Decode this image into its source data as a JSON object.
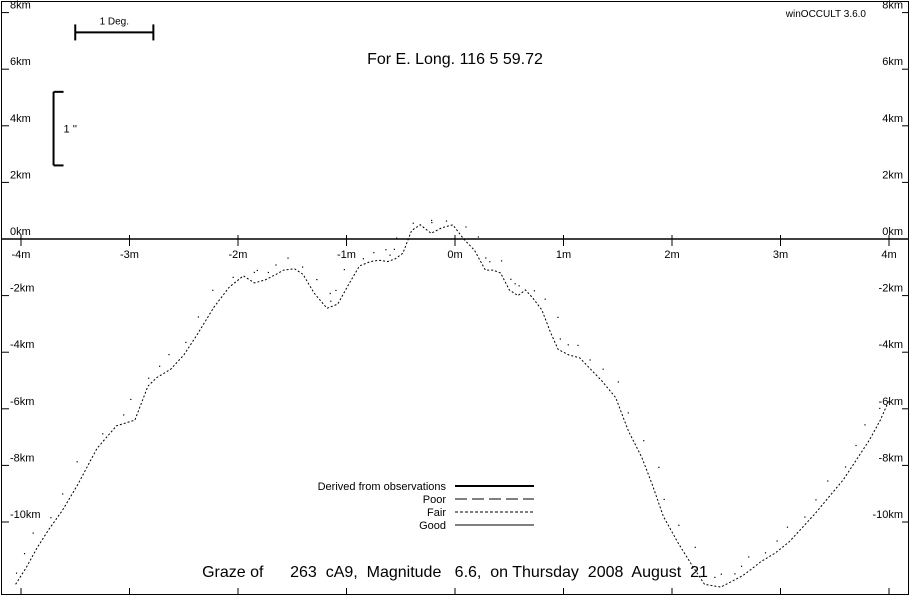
{
  "app_name": "winOCCULT 3.6.0",
  "chart_data": {
    "type": "line",
    "title": "Graze of      263  cA9,  Magnitude   6.6,  on Thursday  2008  August  21",
    "subtitle": "For E. Long.  116  5 59.72",
    "xlabel": "",
    "ylabel": "",
    "x_unit": "m",
    "y_unit": "km",
    "xlim": [
      -4.0,
      4.0
    ],
    "ylim": [
      -12.2,
      8.3
    ],
    "grid": false,
    "x_ticks": [
      {
        "value": -4,
        "label": "-4m"
      },
      {
        "value": -3,
        "label": "-3m"
      },
      {
        "value": -2,
        "label": "-2m"
      },
      {
        "value": -1,
        "label": "-1m"
      },
      {
        "value": 0,
        "label": "0m"
      },
      {
        "value": 1,
        "label": "1m"
      },
      {
        "value": 2,
        "label": "2m"
      },
      {
        "value": 3,
        "label": "3m"
      },
      {
        "value": 4,
        "label": "4m"
      }
    ],
    "y_ticks": [
      {
        "value": 8,
        "label": "8km"
      },
      {
        "value": 6,
        "label": "6km"
      },
      {
        "value": 4,
        "label": "4km"
      },
      {
        "value": 2,
        "label": "2km"
      },
      {
        "value": 0,
        "label": "0km"
      },
      {
        "value": -2,
        "label": "-2km"
      },
      {
        "value": -4,
        "label": "-4km"
      },
      {
        "value": -6,
        "label": "-6km"
      },
      {
        "value": -8,
        "label": "-8km"
      },
      {
        "value": -10,
        "label": "-10km"
      }
    ],
    "scale_bars": [
      {
        "label": "1 Deg.",
        "orientation": "horizontal",
        "x_range": [
          -3.5,
          -2.78
        ],
        "y": 7.3
      },
      {
        "label": "1 ''",
        "orientation": "vertical",
        "x": -3.7,
        "y_range": [
          2.6,
          5.2
        ]
      }
    ],
    "legend": {
      "placement": "bottom-center",
      "entries": [
        {
          "label": "Derived from observations",
          "style": "thick-solid"
        },
        {
          "label": "Poor",
          "style": "long-dash"
        },
        {
          "label": "Fair",
          "style": "short-dash"
        },
        {
          "label": "Good",
          "style": "thin-solid"
        }
      ]
    },
    "series": [
      {
        "style": "short-dash",
        "x": [
          -4.05,
          -3.95,
          -3.85,
          -3.75,
          -3.62,
          -3.48,
          -3.3,
          -3.12,
          -2.95,
          -2.83,
          -2.75,
          -2.62,
          -2.5,
          -2.38,
          -2.22,
          -2.08,
          -1.95,
          -1.85,
          -1.75,
          -1.65,
          -1.58,
          -1.48,
          -1.4,
          -1.3,
          -1.18,
          -1.08,
          -0.98,
          -0.88,
          -0.78,
          -0.7,
          -0.62,
          -0.55,
          -0.48,
          -0.4,
          -0.32,
          -0.22,
          -0.12,
          -0.02,
          0.08,
          0.18,
          0.28,
          0.35,
          0.42,
          0.5,
          0.58,
          0.65,
          0.72,
          0.8,
          0.88,
          0.95,
          1.05,
          1.15,
          1.25,
          1.35,
          1.48,
          1.6,
          1.72,
          1.82,
          1.92,
          2.05,
          2.18,
          2.3,
          2.45,
          2.55,
          2.65,
          2.72,
          2.82,
          2.95,
          3.08,
          3.2,
          3.32,
          3.45,
          3.58,
          3.7,
          3.82,
          3.92,
          4.0
        ],
        "y": [
          -12.2,
          -11.6,
          -10.9,
          -10.3,
          -9.6,
          -8.7,
          -7.4,
          -6.6,
          -6.4,
          -5.2,
          -4.9,
          -4.6,
          -4.1,
          -3.4,
          -2.4,
          -1.7,
          -1.3,
          -1.55,
          -1.45,
          -1.25,
          -1.1,
          -1.05,
          -1.25,
          -1.9,
          -2.45,
          -2.3,
          -1.6,
          -0.95,
          -0.8,
          -0.75,
          -0.8,
          -0.7,
          -0.5,
          0.3,
          0.5,
          0.2,
          0.4,
          0.5,
          0.0,
          -0.4,
          -1.1,
          -1.1,
          -1.2,
          -1.8,
          -2.0,
          -1.8,
          -2.1,
          -2.5,
          -3.3,
          -3.9,
          -4.1,
          -4.2,
          -4.6,
          -5.0,
          -5.6,
          -6.8,
          -7.7,
          -8.7,
          -9.8,
          -10.7,
          -11.5,
          -12.2,
          -12.3,
          -12.1,
          -11.9,
          -11.7,
          -11.4,
          -11.1,
          -10.7,
          -10.2,
          -9.7,
          -9.1,
          -8.5,
          -7.8,
          -7.1,
          -6.4,
          -5.7
        ],
        "note_ref": ""
      }
    ]
  }
}
